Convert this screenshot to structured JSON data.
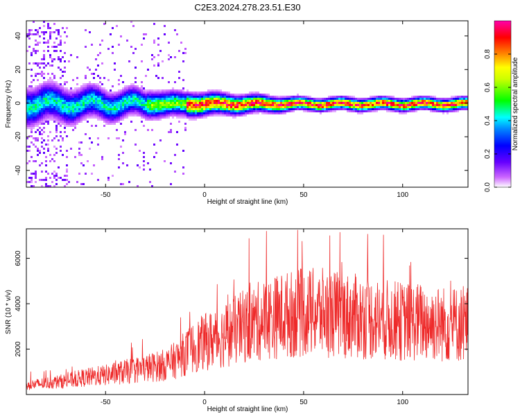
{
  "title": "C2E3.2024.278.23.51.E30",
  "colors": {
    "snr_line": "#ee2a2a",
    "axis": "#000000"
  },
  "chart_data": [
    {
      "type": "heatmap",
      "xlabel": "Height of straight line (km)",
      "ylabel": "Frequency (Hz)",
      "xlim": [
        -90,
        133
      ],
      "ylim": [
        -50,
        49
      ],
      "xticks": [
        -50,
        0,
        50,
        100
      ],
      "yticks": [
        -40,
        -20,
        0,
        20,
        40
      ],
      "grid": false,
      "description_values": {
        "center_frequency_hz": 0,
        "spread_hz_at_xmin": 12,
        "spread_hz_at_xmax": 4
      },
      "colorbar": {
        "label": "Normalized spectral amplitude",
        "range": [
          0,
          1
        ],
        "ticks": [
          0.0,
          0.2,
          0.4,
          0.6,
          0.8
        ],
        "tick_labels": [
          "0.0",
          "0.2",
          "0.4",
          "0.6",
          "0.8"
        ],
        "colormap": [
          "#ffffff",
          "#9900ff",
          "#0000ff",
          "#00ffff",
          "#00ff00",
          "#ffff00",
          "#ff8800",
          "#ff0000",
          "#ff00aa"
        ]
      }
    },
    {
      "type": "line",
      "xlabel": "Height of straight line (km)",
      "ylabel": "SNR (10 * v/v)",
      "xlim": [
        -90,
        133
      ],
      "ylim": [
        0,
        7300
      ],
      "xticks": [
        -50,
        0,
        50,
        100
      ],
      "yticks": [
        2000,
        4000,
        6000
      ],
      "grid": false,
      "series": [
        {
          "x": [
            -90,
            -80,
            -70,
            -60,
            -50,
            -40,
            -30,
            -20,
            -15,
            -10,
            -5,
            0,
            10,
            20,
            30,
            40,
            50,
            60,
            70,
            80,
            90,
            100,
            110,
            120,
            133
          ],
          "values": [
            400,
            500,
            600,
            750,
            850,
            1000,
            1150,
            1300,
            1500,
            1800,
            2100,
            2300,
            2600,
            3000,
            3300,
            3500,
            3600,
            3600,
            3500,
            3400,
            3300,
            3200,
            3200,
            3100,
            3100
          ]
        }
      ],
      "annotations": {
        "max_spike": {
          "x": 47,
          "y": 7250
        }
      }
    }
  ]
}
